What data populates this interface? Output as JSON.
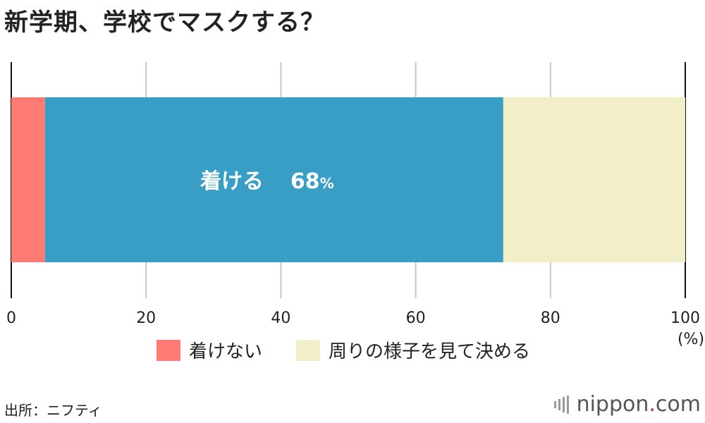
{
  "header": {
    "title": "新学期、学校でマスクする？"
  },
  "chart_data": {
    "type": "bar",
    "orientation": "horizontal-stacked",
    "segments": [
      {
        "name": "着けない",
        "value": 5,
        "color": "#fe7b73"
      },
      {
        "name": "着ける",
        "value": 68,
        "color": "#389ec5",
        "label": "着ける",
        "value_label": "68",
        "unit_label": "%"
      },
      {
        "name": "周りの様子を見て決める",
        "value": 27,
        "color": "#f1eec8"
      }
    ],
    "xlim": [
      0,
      100
    ],
    "xticks": [
      0,
      20,
      40,
      60,
      80,
      100
    ],
    "xtick_labels": [
      "0",
      "20",
      "40",
      "60",
      "80",
      "100"
    ],
    "xunit": "(%)",
    "grid": true,
    "legend": {
      "placement": "bottom",
      "items": [
        {
          "label": "着けない",
          "color": "#fe7b73"
        },
        {
          "label": "周りの様子を見て決める",
          "color": "#f1eec8"
        }
      ]
    }
  },
  "footer": {
    "source": "出所：ニフティ",
    "logo_main": "nippon",
    "logo_dot": ".",
    "logo_tail": "com"
  }
}
